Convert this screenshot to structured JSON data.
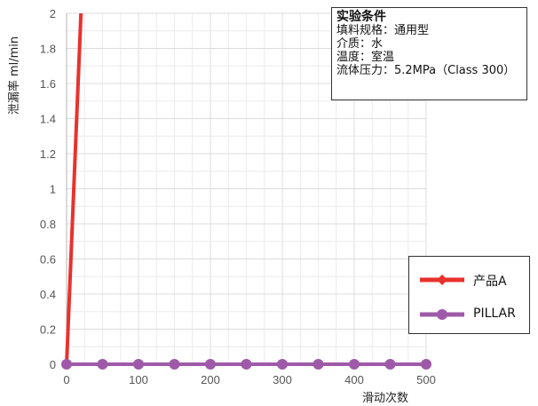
{
  "chart_data": {
    "type": "line",
    "xlabel": "滑动次数",
    "ylabel": "泄漏率  ml/min",
    "xlim": [
      0,
      500
    ],
    "ylim": [
      0,
      2
    ],
    "x_ticks": [
      "0",
      "100",
      "200",
      "300",
      "400",
      "500"
    ],
    "y_ticks": [
      "0",
      "0.2",
      "0.4",
      "0.6",
      "0.8",
      "1",
      "1.2",
      "1.4",
      "1.6",
      "1.8",
      "2"
    ],
    "grid": true,
    "legend_position": "lower-right",
    "series": [
      {
        "name": "产品A",
        "color": "#e8322d",
        "marker": "diamond",
        "points": [
          [
            0,
            0
          ],
          [
            20,
            2.0
          ]
        ]
      },
      {
        "name": "PILLAR",
        "color": "#9e5aa8",
        "marker": "circle",
        "points": [
          [
            0,
            0
          ],
          [
            50,
            0
          ],
          [
            100,
            0
          ],
          [
            150,
            0
          ],
          [
            200,
            0
          ],
          [
            250,
            0
          ],
          [
            300,
            0
          ],
          [
            350,
            0
          ],
          [
            400,
            0
          ],
          [
            450,
            0
          ],
          [
            500,
            0
          ]
        ]
      }
    ],
    "annotation": {
      "title": "实验条件",
      "lines": [
        "填料规格：通用型",
        "介质：水",
        "温度：室温",
        "流体压力：5.2MPa（Class 300）"
      ]
    }
  }
}
